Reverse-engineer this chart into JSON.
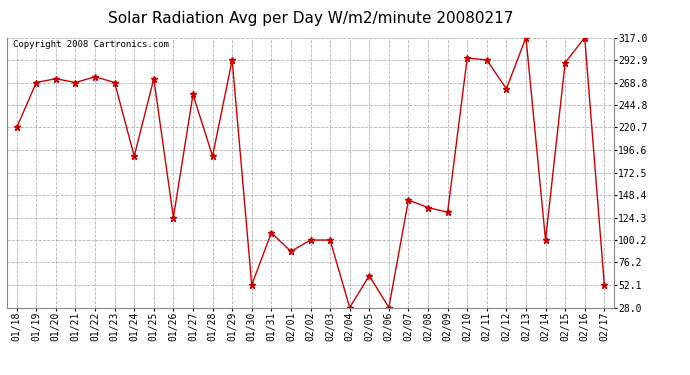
{
  "title": "Solar Radiation Avg per Day W/m2/minute 20080217",
  "copyright": "Copyright 2008 Cartronics.com",
  "labels": [
    "01/18",
    "01/19",
    "01/20",
    "01/21",
    "01/22",
    "01/23",
    "01/24",
    "01/25",
    "01/26",
    "01/27",
    "01/28",
    "01/29",
    "01/30",
    "01/31",
    "02/01",
    "02/02",
    "02/03",
    "02/04",
    "02/05",
    "02/06",
    "02/07",
    "02/08",
    "02/09",
    "02/10",
    "02/11",
    "02/12",
    "02/13",
    "02/14",
    "02/15",
    "02/16",
    "02/17"
  ],
  "values": [
    220.7,
    268.8,
    272.9,
    268.8,
    275.0,
    268.8,
    190.0,
    272.9,
    124.3,
    256.0,
    190.0,
    293.0,
    52.1,
    108.0,
    88.0,
    100.2,
    100.2,
    28.0,
    62.0,
    28.0,
    143.0,
    135.0,
    130.0,
    295.0,
    293.0,
    262.0,
    317.0,
    100.2,
    290.0,
    317.0,
    52.1
  ],
  "line_color": "#cc0000",
  "bg_color": "#ffffff",
  "grid_color": "#aaaaaa",
  "ytick_labels": [
    "317.0",
    "292.9",
    "268.8",
    "244.8",
    "220.7",
    "196.6",
    "172.5",
    "148.4",
    "124.3",
    "100.2",
    "76.2",
    "52.1",
    "28.0"
  ],
  "ytick_values": [
    317.0,
    292.9,
    268.8,
    244.8,
    220.7,
    196.6,
    172.5,
    148.4,
    124.3,
    100.2,
    76.2,
    52.1,
    28.0
  ],
  "ymin": 28.0,
  "ymax": 317.0,
  "title_fontsize": 11,
  "label_fontsize": 7,
  "copyright_fontsize": 6.5
}
